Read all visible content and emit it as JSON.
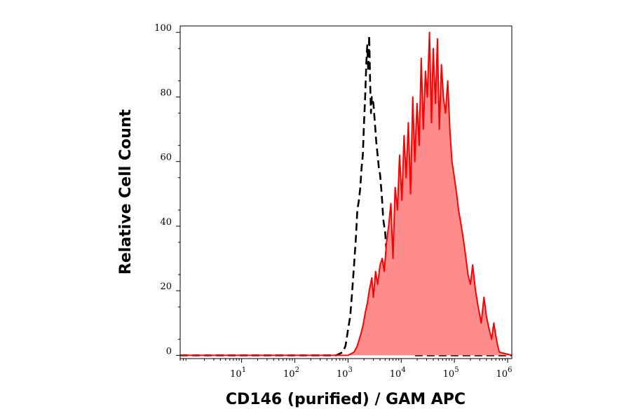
{
  "chart_data": {
    "type": "area",
    "xlabel": "CD146 (purified) / GAM APC",
    "ylabel": "Relative Cell Count",
    "x_scale": "log",
    "xlim": [
      0.7,
      1200000
    ],
    "ylim": [
      -1,
      102
    ],
    "x_ticks": [
      {
        "value": 10,
        "base": "10",
        "exp": "1"
      },
      {
        "value": 100,
        "base": "10",
        "exp": "2"
      },
      {
        "value": 1000,
        "base": "10",
        "exp": "3"
      },
      {
        "value": 10000,
        "base": "10",
        "exp": "4"
      },
      {
        "value": 100000,
        "base": "10",
        "exp": "5"
      },
      {
        "value": 1000000,
        "base": "10",
        "exp": "6"
      }
    ],
    "y_ticks": [
      0,
      20,
      40,
      60,
      80,
      100
    ],
    "grid": false,
    "series": [
      {
        "style": "dashed-line",
        "color": "#000000",
        "x": [
          0.7,
          100,
          600,
          800,
          900,
          1000,
          1100,
          1200,
          1300,
          1400,
          1500,
          1600,
          1700,
          1800,
          1900,
          2000,
          2100,
          2200,
          2300,
          2400,
          2500,
          2600,
          2700,
          2800,
          3000,
          3200,
          3400,
          3600,
          3800,
          4000,
          4300,
          4600,
          5000,
          5400,
          5800,
          6300,
          6800,
          7500,
          8200,
          9000,
          10000,
          11000,
          12000,
          13500,
          15000,
          17000,
          1200000
        ],
        "y": [
          0,
          0,
          0,
          1,
          3,
          8,
          12,
          20,
          28,
          36,
          45,
          48,
          52,
          58,
          62,
          72,
          80,
          90,
          96,
          88,
          99,
          85,
          75,
          80,
          78,
          72,
          66,
          62,
          58,
          56,
          50,
          42,
          38,
          30,
          26,
          20,
          16,
          14,
          10,
          6,
          5,
          3,
          2,
          4,
          2,
          0,
          0
        ]
      },
      {
        "style": "filled-area",
        "color": "#ff0000",
        "fill": "#ff8c8c",
        "x": [
          0.7,
          100,
          1000,
          1300,
          1500,
          1700,
          1900,
          2100,
          2300,
          2500,
          2800,
          3000,
          3300,
          3600,
          4000,
          4400,
          4800,
          5300,
          5800,
          6400,
          7000,
          7700,
          8500,
          9300,
          10300,
          11300,
          12400,
          13600,
          15000,
          16500,
          18000,
          19800,
          21700,
          23800,
          26000,
          28500,
          31000,
          34000,
          37000,
          40000,
          44000,
          48000,
          52000,
          57000,
          62000,
          68000,
          75000,
          82000,
          90000,
          100000,
          110000,
          120000,
          135000,
          150000,
          165000,
          180000,
          200000,
          220000,
          250000,
          280000,
          320000,
          360000,
          400000,
          450000,
          500000,
          550000,
          600000,
          650000,
          700000,
          1200000
        ],
        "y": [
          0,
          0,
          0,
          1,
          3,
          6,
          9,
          13,
          16,
          20,
          24,
          18,
          26,
          22,
          28,
          30,
          26,
          35,
          40,
          47,
          30,
          52,
          45,
          62,
          48,
          68,
          55,
          72,
          50,
          80,
          60,
          78,
          65,
          92,
          70,
          88,
          80,
          100,
          72,
          95,
          78,
          98,
          70,
          90,
          80,
          75,
          85,
          70,
          60,
          55,
          50,
          45,
          40,
          35,
          30,
          25,
          22,
          28,
          20,
          15,
          10,
          18,
          12,
          8,
          5,
          10,
          6,
          3,
          1,
          0
        ]
      }
    ]
  }
}
